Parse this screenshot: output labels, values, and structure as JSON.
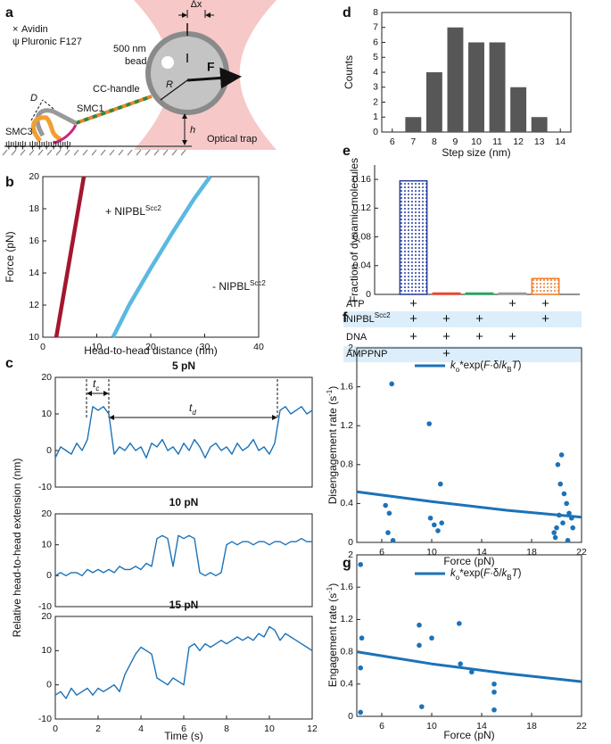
{
  "diagram": {
    "panel": "a",
    "labels": {
      "avidin": "Avidin",
      "pluronic": "Pluronic F127",
      "bead_size": "500 nm",
      "bead": "bead",
      "dx": "Δx",
      "force": "F",
      "radius": "R",
      "height": "h",
      "trap": "Optical trap",
      "handle": "CC-handle",
      "smc1": "SMC1",
      "smc3": "SMC3",
      "distance": "D"
    }
  },
  "chart_data": [
    {
      "type": "line",
      "panel": "b",
      "xlabel": "Head-to-head distance (nm)",
      "ylabel": "Force (pN)",
      "xlim": [
        0,
        40
      ],
      "xticks": [
        0,
        10,
        20,
        30,
        40
      ],
      "ylim": [
        10,
        20
      ],
      "yticks": [
        10,
        12,
        14,
        16,
        18,
        20
      ],
      "annotations": [
        {
          "text": "+ NIPBL",
          "sup": "Scc2"
        },
        {
          "text": "- NIPBL",
          "sup": "Scc2"
        }
      ],
      "series": [
        {
          "color": "#a3172e",
          "x": [
            2.5,
            7.6
          ],
          "values": [
            10,
            20
          ]
        },
        {
          "color": "#5bb8e2",
          "x": [
            13,
            16,
            20,
            24,
            28,
            31
          ],
          "values": [
            10,
            12,
            14.3,
            16.5,
            18.6,
            20
          ]
        }
      ]
    },
    {
      "type": "line",
      "panel": "c",
      "title": "5 pN",
      "ylabel": "Relative head-to-head extension (nm)",
      "annotations": [
        {
          "text": "t",
          "sub": "c"
        },
        {
          "text": "t",
          "sub": "d"
        }
      ],
      "ylim": [
        -10,
        20
      ],
      "yticks": [
        -10,
        0,
        10,
        20
      ],
      "xlim": [
        0,
        12
      ],
      "color": "#1b72b8",
      "x": [
        0,
        0.25,
        0.5,
        0.75,
        1,
        1.25,
        1.5,
        1.75,
        2,
        2.25,
        2.5,
        2.75,
        3,
        3.25,
        3.5,
        3.75,
        4,
        4.25,
        4.5,
        4.75,
        5,
        5.25,
        5.5,
        5.75,
        6,
        6.25,
        6.5,
        6.75,
        7,
        7.25,
        7.5,
        7.75,
        8,
        8.25,
        8.5,
        8.75,
        9,
        9.25,
        9.5,
        9.75,
        10,
        10.25,
        10.5,
        10.75,
        11,
        11.25,
        11.5,
        11.75,
        12
      ],
      "values": [
        -2,
        1,
        0,
        -1,
        2,
        0,
        3,
        12,
        11,
        12,
        10,
        -1,
        1,
        0,
        2,
        0,
        1,
        -2,
        2,
        1,
        3,
        0,
        1,
        -1,
        2,
        0,
        3,
        1,
        -2,
        1,
        2,
        0,
        1,
        -1,
        2,
        0,
        1,
        3,
        0,
        1,
        -1,
        2,
        11,
        12,
        10,
        11,
        12,
        10,
        11
      ]
    },
    {
      "type": "line",
      "title": "10 pN",
      "ylim": [
        -10,
        20
      ],
      "yticks": [
        -10,
        0,
        10,
        20
      ],
      "xlim": [
        0,
        12
      ],
      "color": "#1b72b8",
      "x": [
        0,
        0.25,
        0.5,
        0.75,
        1,
        1.25,
        1.5,
        1.75,
        2,
        2.25,
        2.5,
        2.75,
        3,
        3.25,
        3.5,
        3.75,
        4,
        4.25,
        4.5,
        4.75,
        5,
        5.25,
        5.5,
        5.75,
        6,
        6.25,
        6.5,
        6.75,
        7,
        7.25,
        7.5,
        7.75,
        8,
        8.25,
        8.5,
        8.75,
        9,
        9.25,
        9.5,
        9.75,
        10,
        10.25,
        10.5,
        10.75,
        11,
        11.25,
        11.5,
        11.75,
        12
      ],
      "values": [
        0,
        1,
        0,
        1,
        1,
        0,
        2,
        1,
        2,
        1,
        2,
        1,
        3,
        2,
        2,
        3,
        2,
        4,
        3,
        12,
        13,
        12,
        3,
        13,
        12,
        13,
        12,
        1,
        0,
        1,
        0,
        1,
        10,
        11,
        10,
        11,
        11,
        10,
        11,
        11,
        10,
        11,
        11,
        10,
        11,
        11,
        12,
        11,
        11
      ]
    },
    {
      "type": "line",
      "title": "15 pN",
      "xlabel": "Time (s)",
      "ylim": [
        -10,
        20
      ],
      "yticks": [
        -10,
        0,
        10,
        20
      ],
      "xlim": [
        0,
        12
      ],
      "xticks": [
        0,
        2,
        4,
        6,
        8,
        10,
        12
      ],
      "color": "#1b72b8",
      "x": [
        0,
        0.25,
        0.5,
        0.75,
        1,
        1.25,
        1.5,
        1.75,
        2,
        2.25,
        2.5,
        2.75,
        3,
        3.25,
        3.5,
        3.75,
        4,
        4.25,
        4.5,
        4.75,
        5,
        5.25,
        5.5,
        5.75,
        6,
        6.25,
        6.5,
        6.75,
        7,
        7.25,
        7.5,
        7.75,
        8,
        8.25,
        8.5,
        8.75,
        9,
        9.25,
        9.5,
        9.75,
        10,
        10.25,
        10.5,
        10.75,
        11,
        11.25,
        11.5,
        11.75,
        12
      ],
      "values": [
        -3,
        -2,
        -4,
        -1,
        -3,
        -2,
        -1,
        -3,
        -1,
        -2,
        -1,
        0,
        -2,
        3,
        6,
        9,
        11,
        10,
        9,
        2,
        1,
        0,
        2,
        1,
        0,
        11,
        12,
        10,
        12,
        11,
        12,
        13,
        12,
        13,
        14,
        13,
        14,
        13,
        15,
        14,
        17,
        16,
        13,
        15,
        14,
        13,
        12,
        11,
        10
      ]
    },
    {
      "type": "histogram",
      "panel": "d",
      "xlabel": "Step size (nm)",
      "ylabel": "Counts",
      "color": "#575757",
      "bins": [
        6.5,
        7.5,
        8.5,
        9.5,
        10.5,
        11.5,
        12.5,
        13.5
      ],
      "values": [
        1,
        4,
        7,
        6,
        6,
        3,
        1
      ],
      "xlim": [
        5.5,
        14.5
      ],
      "xticks": [
        6,
        7,
        8,
        9,
        10,
        11,
        12,
        13,
        14
      ],
      "ylim": [
        0,
        8
      ],
      "yticks": [
        0,
        1,
        2,
        3,
        4,
        5,
        6,
        7,
        8
      ]
    },
    {
      "type": "bar",
      "panel": "e",
      "ylabel": "Fraction of dynamic molecules",
      "categories": [
        null,
        null,
        null,
        null,
        null
      ],
      "values": [
        0.158,
        0.001,
        0.001,
        0.001,
        0.022
      ],
      "colors": [
        "#2b3f9e",
        "#e8472a",
        "#2ca25f",
        "#9a9a9a",
        "#f07b28"
      ],
      "hatched": [
        true,
        false,
        false,
        false,
        true
      ],
      "ylim": [
        0,
        0.18
      ],
      "yticks": [
        0,
        0.04,
        0.08,
        0.12,
        0.16
      ],
      "table": [
        {
          "label": {
            "text": "ATP"
          },
          "cells": [
            "+",
            null,
            null,
            "+",
            "+"
          ]
        },
        {
          "label": {
            "text": "NIPBL",
            "sup": "Scc2"
          },
          "cells": [
            "+",
            "+",
            "+",
            null,
            "+"
          ]
        },
        {
          "label": {
            "text": "DNA"
          },
          "cells": [
            "+",
            "+",
            "+",
            "+",
            null
          ]
        },
        {
          "label": {
            "text": "AMPPNP"
          },
          "cells": [
            null,
            "+",
            null,
            null,
            null
          ]
        }
      ]
    },
    {
      "type": "scatter",
      "panel": "f",
      "xlabel": "Force (pN)",
      "ylabel": {
        "text": "Disengagement  rate (s",
        "sup": "-1",
        "tail": ")"
      },
      "xlim": [
        4,
        22
      ],
      "xticks": [
        6,
        10,
        14,
        18,
        22
      ],
      "ylim": [
        0,
        2
      ],
      "yticks": [
        0,
        0.4,
        0.8,
        1.2,
        1.6,
        2
      ],
      "series": [
        {
          "type": "scatter",
          "color": "#1b72b8",
          "x": [
            6.3,
            6.5,
            6.6,
            6.9,
            6.8,
            9.8,
            9.9,
            10.2,
            10.5,
            10.7,
            10.8,
            19.8,
            20.0,
            20.2,
            20.4,
            20.1,
            20.3,
            20.6,
            20.8,
            21.0,
            21.2,
            20.5,
            19.9,
            20.9,
            21.3
          ],
          "values": [
            0.38,
            0.1,
            0.3,
            0.02,
            1.63,
            1.22,
            0.25,
            0.18,
            0.12,
            0.6,
            0.2,
            0.1,
            0.15,
            0.28,
            0.9,
            0.8,
            0.6,
            0.5,
            0.4,
            0.3,
            0.25,
            0.2,
            0.05,
            0.02,
            0.15
          ]
        },
        {
          "type": "line",
          "color": "#1b72b8",
          "x": [
            4,
            10,
            16,
            22
          ],
          "values": [
            0.52,
            0.42,
            0.33,
            0.26
          ],
          "legend": [
            {
              "text": "k",
              "italic": true
            },
            {
              "text": "o",
              "sub": true
            },
            {
              "text": "*exp("
            },
            {
              "text": "F",
              "italic": true
            },
            {
              "text": "·δ/"
            },
            {
              "text": "k",
              "italic": true
            },
            {
              "text": "B",
              "sub": true
            },
            {
              "text": "T",
              "italic": true
            },
            {
              "text": ")"
            }
          ]
        }
      ]
    },
    {
      "type": "scatter",
      "panel": "g",
      "xlabel": "Force (pN)",
      "ylabel": {
        "text": "Engagement  rate (s",
        "sup": "-1",
        "tail": ")"
      },
      "xlim": [
        4,
        22
      ],
      "xticks": [
        6,
        10,
        14,
        18,
        22
      ],
      "ylim": [
        0,
        2
      ],
      "yticks": [
        0,
        0.4,
        0.8,
        1.2,
        1.6,
        2
      ],
      "series": [
        {
          "type": "scatter",
          "color": "#1b72b8",
          "x": [
            4.3,
            4.4,
            4.3,
            4.3,
            9,
            9,
            9.2,
            10,
            12.2,
            12.3,
            13.2,
            15,
            15,
            15
          ],
          "values": [
            1.88,
            0.97,
            0.6,
            0.05,
            1.13,
            0.88,
            0.12,
            0.97,
            1.15,
            0.65,
            0.55,
            0.4,
            0.3,
            0.08
          ]
        },
        {
          "type": "line",
          "color": "#1b72b8",
          "x": [
            4,
            10,
            16,
            22
          ],
          "values": [
            0.8,
            0.65,
            0.53,
            0.43
          ],
          "legend": [
            {
              "text": "k",
              "italic": true
            },
            {
              "text": "o",
              "sub": true
            },
            {
              "text": "*exp("
            },
            {
              "text": "F",
              "italic": true
            },
            {
              "text": "·δ/"
            },
            {
              "text": "k",
              "italic": true
            },
            {
              "text": "B",
              "sub": true
            },
            {
              "text": "T",
              "italic": true
            },
            {
              "text": ")"
            }
          ]
        }
      ]
    }
  ]
}
